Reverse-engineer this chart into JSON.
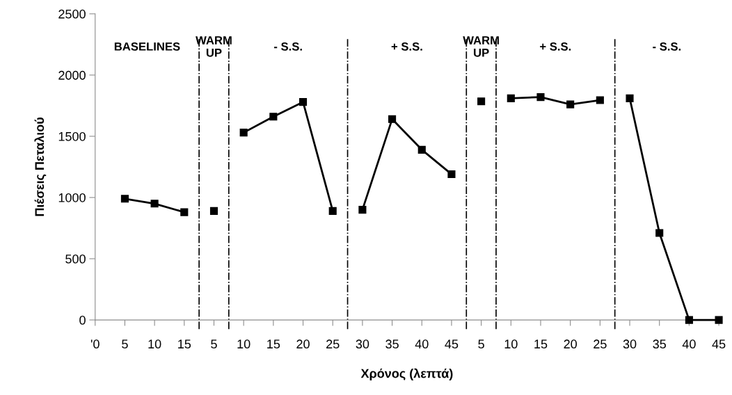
{
  "chart_data": {
    "type": "line",
    "xlabel": "Χρόνος (λεπτά)",
    "ylabel": "Πιέσεις Πεταλιού",
    "categories": [
      "'0",
      "5",
      "10",
      "15",
      "5",
      "10",
      "15",
      "20",
      "25",
      "30",
      "35",
      "40",
      "45",
      "5",
      "10",
      "15",
      "20",
      "25",
      "30",
      "35",
      "40",
      "45"
    ],
    "ylim": [
      0,
      2500
    ],
    "yticks": [
      0,
      500,
      1000,
      1500,
      2000,
      2500
    ],
    "grid": false,
    "legend": false,
    "marker": "square",
    "line_style": "solid",
    "series": [
      {
        "color": "#000000",
        "values": [
          null,
          990,
          950,
          880,
          null,
          null,
          null,
          null,
          null,
          null,
          null,
          null,
          null,
          null,
          null,
          null,
          null,
          null,
          null,
          null,
          null,
          null
        ]
      },
      {
        "color": "#000000",
        "values": [
          null,
          null,
          null,
          null,
          890,
          null,
          null,
          null,
          null,
          null,
          null,
          null,
          null,
          null,
          null,
          null,
          null,
          null,
          null,
          null,
          null,
          null
        ]
      },
      {
        "color": "#000000",
        "values": [
          null,
          null,
          null,
          null,
          null,
          1530,
          1660,
          1780,
          890,
          null,
          null,
          null,
          null,
          null,
          null,
          null,
          null,
          null,
          null,
          null,
          null,
          null
        ]
      },
      {
        "color": "#000000",
        "values": [
          null,
          null,
          null,
          null,
          null,
          null,
          null,
          null,
          null,
          900,
          1640,
          1390,
          1190,
          null,
          null,
          null,
          null,
          null,
          null,
          null,
          null,
          null
        ]
      },
      {
        "color": "#000000",
        "values": [
          null,
          null,
          null,
          null,
          null,
          null,
          null,
          null,
          null,
          null,
          null,
          null,
          null,
          1785,
          null,
          null,
          null,
          null,
          null,
          null,
          null,
          null
        ]
      },
      {
        "color": "#000000",
        "values": [
          null,
          null,
          null,
          null,
          null,
          null,
          null,
          null,
          null,
          null,
          null,
          null,
          null,
          null,
          1810,
          1820,
          1760,
          1795,
          null,
          null,
          null,
          null
        ]
      },
      {
        "color": "#000000",
        "values": [
          null,
          null,
          null,
          null,
          null,
          null,
          null,
          null,
          null,
          null,
          null,
          null,
          null,
          null,
          null,
          null,
          null,
          null,
          1810,
          710,
          0,
          0
        ]
      }
    ],
    "annotations": [
      "BASELINES",
      "WARM\nUP",
      "- S.S.",
      "+ S.S.",
      "WARM\nUP",
      "+ S.S.",
      "- S.S."
    ]
  }
}
